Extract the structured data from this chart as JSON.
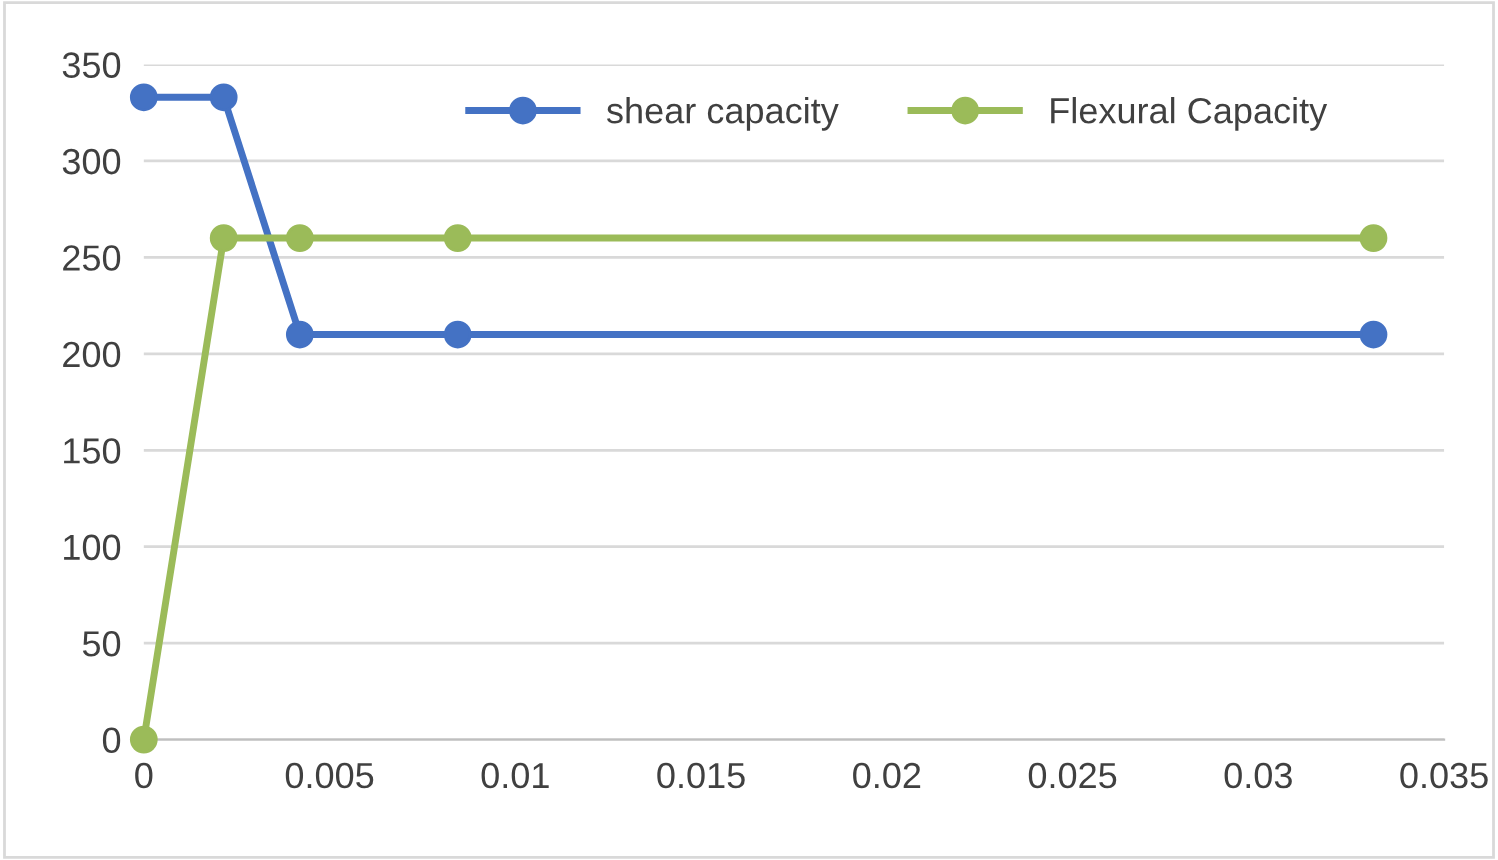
{
  "chart_data": {
    "type": "line",
    "series": [
      {
        "name": "shear capacity",
        "color": "#4472c4",
        "x": [
          0,
          0.00215,
          0.0042,
          0.00845,
          0.0331
        ],
        "values": [
          333,
          333,
          210,
          210,
          210
        ]
      },
      {
        "name": "Flexural Capacity",
        "color": "#9bbb59",
        "x": [
          0,
          0.00215,
          0.0042,
          0.00845,
          0.0331
        ],
        "values": [
          0,
          260,
          260,
          260,
          260
        ]
      }
    ],
    "xlim": [
      0,
      0.035
    ],
    "xticks": [
      0,
      0.005,
      0.01,
      0.015,
      0.02,
      0.025,
      0.03,
      0.035
    ],
    "ylim": [
      0,
      350
    ],
    "yticks": [
      0,
      50,
      100,
      150,
      200,
      250,
      300,
      350
    ],
    "grid": "y",
    "legend": "top",
    "marker": "circle",
    "line_style": "solid"
  }
}
